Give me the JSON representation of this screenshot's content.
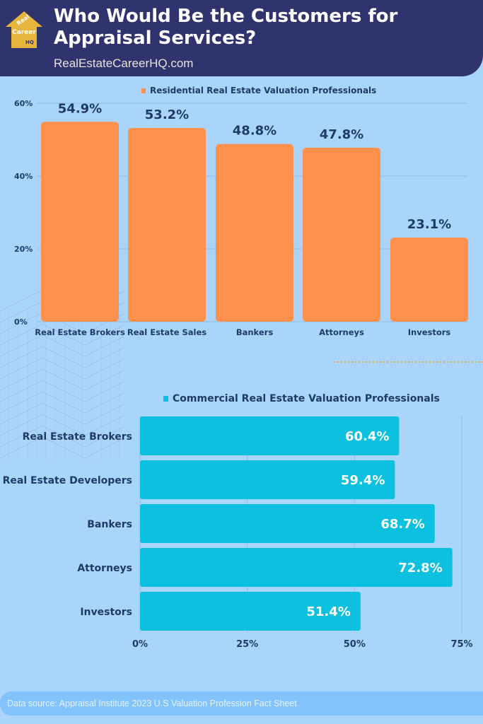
{
  "header": {
    "title": "Who Would Be the Customers for Appraisal Services?",
    "site": "RealEstateCareerHQ.com",
    "logo_text": "Real Estate Career HQ"
  },
  "colors": {
    "header": "#2f346e",
    "orange": "#ff914d",
    "cyan": "#0cc0df",
    "text": "#1f3b63",
    "background": "#a9d5fc"
  },
  "chart_data": [
    {
      "type": "bar",
      "orientation": "vertical",
      "legend": "Residential Real Estate Valuation Professionals",
      "legend_position": "top",
      "categories": [
        "Real Estate Brokers",
        "Real Estate Sales",
        "Bankers",
        "Attorneys",
        "Investors"
      ],
      "series": [
        {
          "name": "Residential Real Estate Valuation Professionals",
          "values": [
            54.9,
            53.2,
            48.8,
            47.8,
            23.1
          ]
        }
      ],
      "data_labels": [
        "54.9%",
        "53.2%",
        "48.8%",
        "47.8%",
        "23.1%"
      ],
      "yticks": [
        "0%",
        "20%",
        "40%",
        "60%"
      ],
      "ylim": [
        0,
        60
      ],
      "grid": true
    },
    {
      "type": "bar",
      "orientation": "horizontal",
      "legend": "Commercial Real Estate Valuation Professionals",
      "legend_position": "top",
      "categories": [
        "Real Estate Brokers",
        "Real Estate Developers",
        "Bankers",
        "Attorneys",
        "Investors"
      ],
      "series": [
        {
          "name": "Commercial Real Estate Valuation Professionals",
          "values": [
            60.4,
            59.4,
            68.7,
            72.8,
            51.4
          ]
        }
      ],
      "data_labels": [
        "60.4%",
        "59.4%",
        "68.7%",
        "72.8%",
        "51.4%"
      ],
      "xticks": [
        "0%",
        "25%",
        "50%",
        "75%"
      ],
      "xlim": [
        0,
        75
      ],
      "grid": true
    }
  ],
  "footer": {
    "source": "Data source: Appraisal Institute 2023 U.S Valuation Profession Fact Sheet"
  }
}
